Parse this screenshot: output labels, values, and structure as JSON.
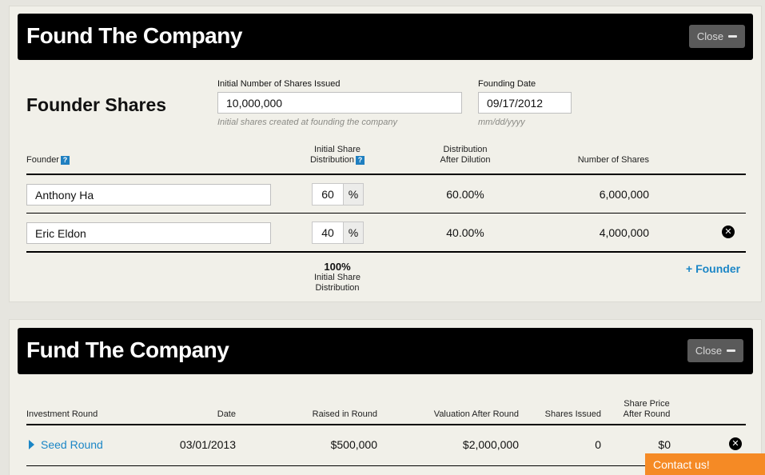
{
  "found": {
    "title": "Found The Company",
    "close_label": "Close",
    "section_title": "Founder Shares",
    "initial_shares": {
      "label": "Initial Number of Shares Issued",
      "value": "10,000,000",
      "hint": "Initial shares created at founding the company"
    },
    "founding_date": {
      "label": "Founding Date",
      "value": "09/17/2012",
      "hint": "mm/dd/yyyy"
    },
    "columns": {
      "founder": "Founder",
      "initial_line1": "Initial Share",
      "initial_line2": "Distribution",
      "dist_line1": "Distribution",
      "dist_line2": "After Dilution",
      "shares": "Number of Shares"
    },
    "help_glyph": "?",
    "pct_symbol": "%",
    "remove_glyph": "✕",
    "founders": [
      {
        "name": "Anthony Ha",
        "initial": "60",
        "after": "60.00%",
        "shares": "6,000,000"
      },
      {
        "name": "Eric Eldon",
        "initial": "40",
        "after": "40.00%",
        "shares": "4,000,000"
      }
    ],
    "total": {
      "value": "100%",
      "line1": "Initial Share",
      "line2": "Distribution"
    },
    "add_founder": "+ Founder"
  },
  "fund": {
    "title": "Fund The Company",
    "close_label": "Close",
    "columns": {
      "round": "Investment Round",
      "date": "Date",
      "raised": "Raised in Round",
      "valuation": "Valuation After Round",
      "issued": "Shares Issued",
      "price_line1": "Share Price",
      "price_line2": "After Round"
    },
    "rounds": [
      {
        "name": "Seed Round",
        "date": "03/01/2013",
        "raised": "$500,000",
        "valuation": "$2,000,000",
        "issued": "0",
        "price": "$0"
      }
    ]
  },
  "contact_label": "Contact us!",
  "colors": {
    "accent_blue": "#1b86c6",
    "contact_orange": "#f58a25",
    "panel_bg": "#f1f0e9"
  }
}
